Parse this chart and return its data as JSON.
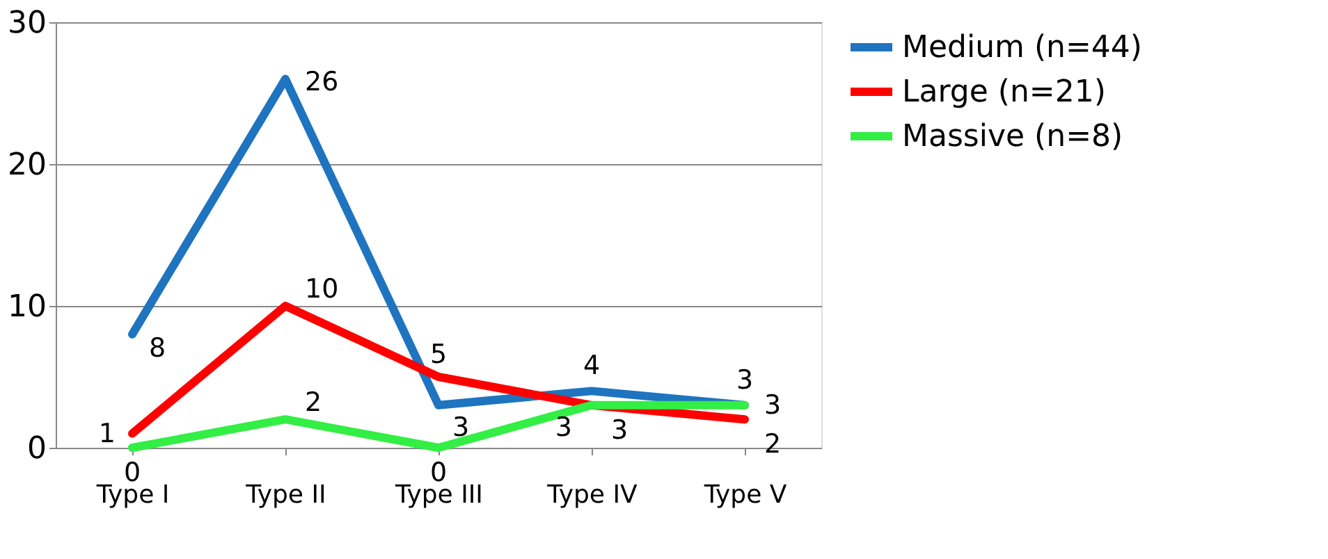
{
  "chart_data": {
    "type": "line",
    "categories": [
      "Type I",
      "Type II",
      "Type III",
      "Type IV",
      "Type V"
    ],
    "series": [
      {
        "name": "Medium (n=44)",
        "color": "#1f74c0",
        "values": [
          8,
          26,
          3,
          4,
          3
        ]
      },
      {
        "name": "Large (n=21)",
        "color": "#ff0000",
        "values": [
          1,
          10,
          5,
          3,
          2
        ]
      },
      {
        "name": "Massive (n=8)",
        "color": "#33ee44",
        "values": [
          0,
          2,
          0,
          3,
          3
        ]
      }
    ],
    "ylim": [
      0,
      30
    ],
    "yticks": [
      0,
      10,
      20,
      30
    ],
    "grid": "y",
    "legend": "right",
    "data_labels": true,
    "marker": "none",
    "line_style": "solid"
  }
}
